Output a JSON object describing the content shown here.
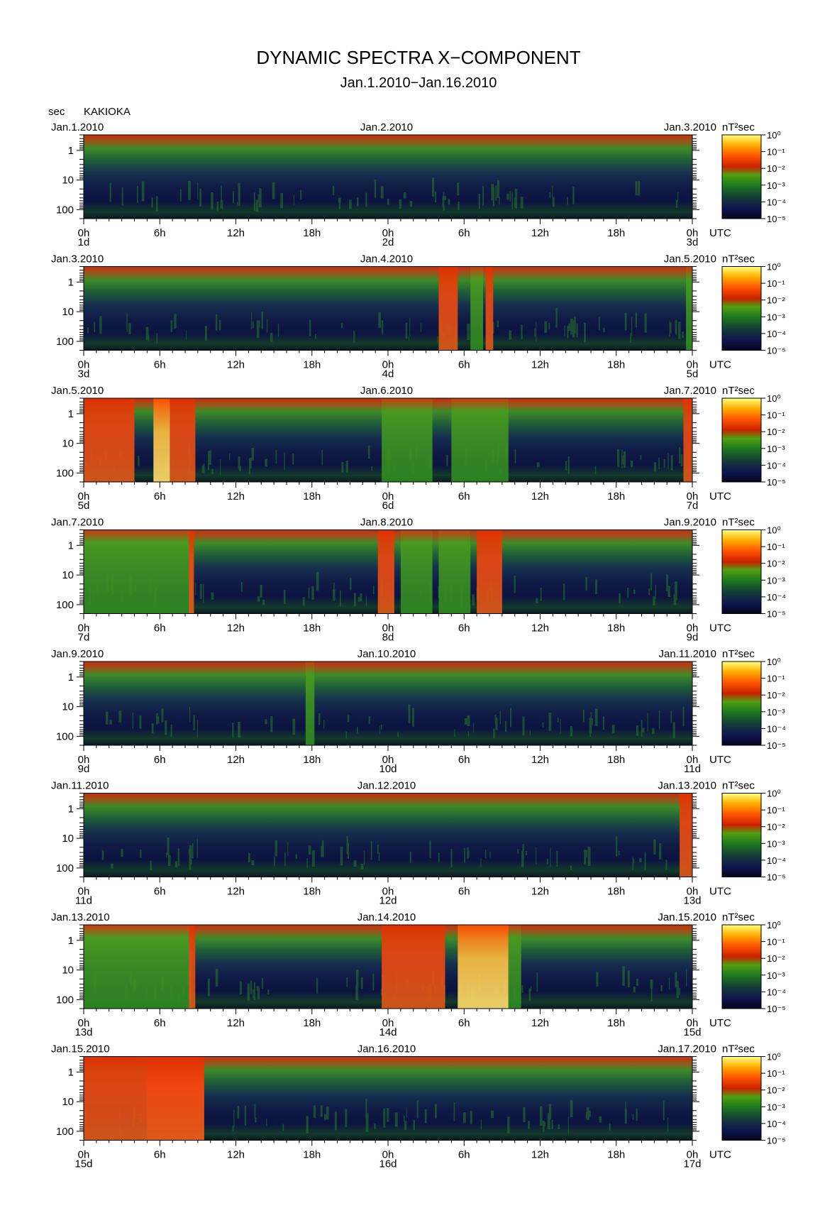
{
  "header": {
    "title": "DYNAMIC SPECTRA X−COMPONENT",
    "subtitle": "Jan.1.2010−Jan.16.2010",
    "y_unit": "sec",
    "station": "KAKIOKA"
  },
  "chart_data": {
    "type": "heatmap",
    "title": "DYNAMIC SPECTRA X−COMPONENT",
    "subtitle": "Jan.1.2010−Jan.16.2010",
    "station": "KAKIOKA",
    "ylabel": "sec",
    "y_scale": "log",
    "y_range_sec": [
      0.3,
      200
    ],
    "y_tick_labels": [
      "1",
      "10",
      "100"
    ],
    "y_tick_values": [
      1,
      10,
      100
    ],
    "x_tick_labels": [
      "0h",
      "6h",
      "12h",
      "18h",
      "0h",
      "6h",
      "12h",
      "18h",
      "0h"
    ],
    "x_unit_label": "UTC",
    "colorbar": {
      "unit_label": "nT²sec",
      "scale": "log",
      "range": [
        1e-05,
        1
      ],
      "tick_labels": [
        "10⁰",
        "10⁻¹",
        "10⁻²",
        "10⁻³",
        "10⁻⁴",
        "10⁻⁵"
      ],
      "colors_low_to_high": [
        "#05051a",
        "#0f1550",
        "#143a38",
        "#1e7a1e",
        "#50a010",
        "#cc2000",
        "#ff5500",
        "#ffb000",
        "#ffff80"
      ]
    },
    "panels": [
      {
        "start_label": "Jan.1.2010",
        "mid_label": "Jan.2.2010",
        "end_label": "Jan.3.2010",
        "day_labels": [
          "1d",
          "2d",
          "3d"
        ],
        "events": []
      },
      {
        "start_label": "Jan.3.2010",
        "mid_label": "Jan.4.2010",
        "end_label": "Jan.5.2010",
        "day_labels": [
          "3d",
          "4d",
          "5d"
        ],
        "events": [
          [
            28.0,
            29.5,
            2
          ],
          [
            30.5,
            31.5,
            1
          ],
          [
            31.7,
            32.3,
            2
          ],
          [
            47.5,
            48.0,
            1
          ]
        ]
      },
      {
        "start_label": "Jan.5.2010",
        "mid_label": "Jan.6.2010",
        "end_label": "Jan.7.2010",
        "day_labels": [
          "5d",
          "6d",
          "7d"
        ],
        "events": [
          [
            0.0,
            4.0,
            2
          ],
          [
            5.5,
            6.8,
            3
          ],
          [
            6.8,
            8.8,
            2
          ],
          [
            23.5,
            27.5,
            1
          ],
          [
            29.0,
            33.5,
            1
          ],
          [
            47.3,
            48.0,
            2
          ]
        ]
      },
      {
        "start_label": "Jan.7.2010",
        "mid_label": "Jan.8.2010",
        "end_label": "Jan.9.2010",
        "day_labels": [
          "7d",
          "8d",
          "9d"
        ],
        "events": [
          [
            0.0,
            8.6,
            1
          ],
          [
            8.3,
            8.7,
            2
          ],
          [
            23.2,
            24.5,
            2
          ],
          [
            25.0,
            27.5,
            1
          ],
          [
            28.0,
            30.5,
            1
          ],
          [
            31.0,
            33.0,
            2
          ]
        ]
      },
      {
        "start_label": "Jan.9.2010",
        "mid_label": "Jan.10.2010",
        "end_label": "Jan.11.2010",
        "day_labels": [
          "9d",
          "10d",
          "11d"
        ],
        "events": [
          [
            17.5,
            18.2,
            1
          ]
        ]
      },
      {
        "start_label": "Jan.11.2010",
        "mid_label": "Jan.12.2010",
        "end_label": "Jan.13.2010",
        "day_labels": [
          "11d",
          "12d",
          "13d"
        ],
        "events": [
          [
            47.0,
            48.0,
            2
          ]
        ]
      },
      {
        "start_label": "Jan.13.2010",
        "mid_label": "Jan.14.2010",
        "end_label": "Jan.15.2010",
        "day_labels": [
          "13d",
          "14d",
          "15d"
        ],
        "events": [
          [
            0.0,
            8.5,
            1
          ],
          [
            8.3,
            8.8,
            2
          ],
          [
            23.5,
            28.5,
            2
          ],
          [
            29.5,
            33.5,
            3
          ],
          [
            33.5,
            34.5,
            1
          ]
        ]
      },
      {
        "start_label": "Jan.15.2010",
        "mid_label": "Jan.16.2010",
        "end_label": "Jan.17.2010",
        "day_labels": [
          "15d",
          "16d",
          "17d"
        ],
        "events": [
          [
            0.0,
            9.5,
            2
          ],
          [
            5.0,
            9.5,
            2
          ]
        ]
      }
    ]
  }
}
